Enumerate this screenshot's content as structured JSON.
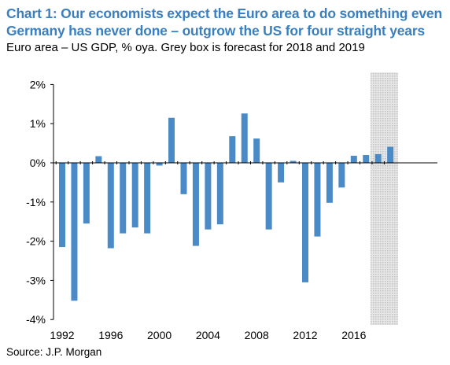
{
  "header": {
    "title_line1": "Chart 1: Our economists expect the Euro area to do something even",
    "title_line2": "Germany has never done – outgrow the US for four straight years",
    "subtitle": "Euro area – US GDP, % oya. Grey box is forecast for 2018 and 2019"
  },
  "footer": {
    "source": "Source: J.P. Morgan"
  },
  "chart_data": {
    "type": "bar",
    "title": "",
    "xlabel": "",
    "ylabel": "",
    "x": [
      1992,
      1993,
      1994,
      1995,
      1996,
      1997,
      1998,
      1999,
      2000,
      2001,
      2002,
      2003,
      2004,
      2005,
      2006,
      2007,
      2008,
      2009,
      2010,
      2011,
      2012,
      2013,
      2014,
      2015,
      2016,
      2017,
      2018,
      2019
    ],
    "values": [
      -2.15,
      -3.52,
      -1.55,
      0.17,
      -2.18,
      -1.8,
      -1.65,
      -1.8,
      -0.07,
      1.15,
      -0.8,
      -2.12,
      -1.7,
      -1.57,
      0.68,
      1.26,
      0.62,
      -1.7,
      -0.5,
      0.05,
      -3.05,
      -1.88,
      -1.02,
      -0.63,
      0.18,
      0.2,
      0.22,
      0.41
    ],
    "ylim": [
      -4,
      2
    ],
    "yticks": [
      2,
      1,
      0,
      -1,
      -2,
      -3,
      -4
    ],
    "ytick_labels": [
      "2%",
      "1%",
      "0%",
      "-1%",
      "-2%",
      "-3%",
      "-4%"
    ],
    "xticks": [
      1992,
      1996,
      2000,
      2004,
      2008,
      2012,
      2016
    ],
    "xtick_labels": [
      "1992",
      "1996",
      "2000",
      "2004",
      "2008",
      "2012",
      "2016"
    ],
    "forecast_years": [
      2018,
      2019
    ],
    "grid": false,
    "colors": {
      "bar": "#4a8ac6",
      "title": "#3a7fbf",
      "forecast_box": "#d4d4d4"
    }
  }
}
